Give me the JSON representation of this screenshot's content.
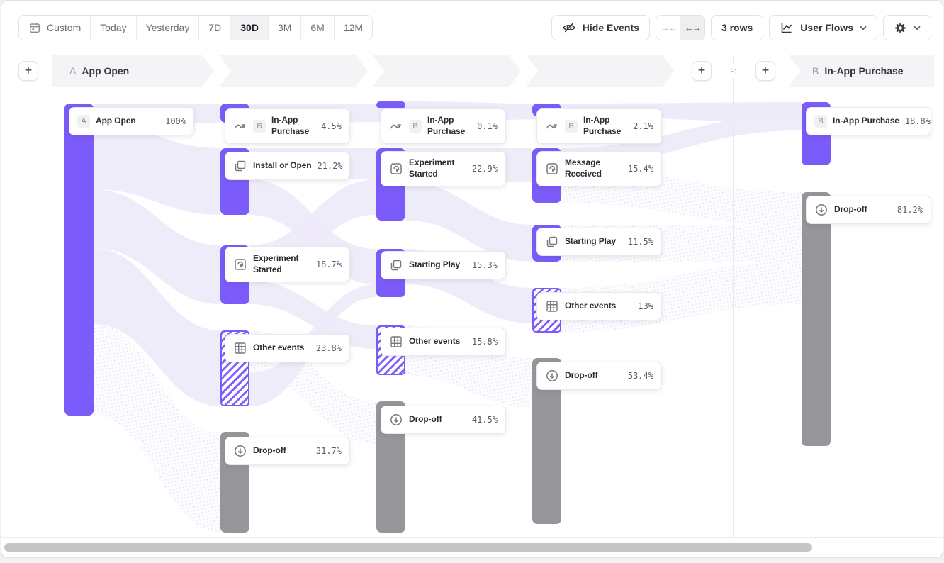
{
  "toolbar": {
    "date_ranges": [
      {
        "label": "Custom",
        "active": false,
        "icon": "calendar-icon"
      },
      {
        "label": "Today",
        "active": false
      },
      {
        "label": "Yesterday",
        "active": false
      },
      {
        "label": "7D",
        "active": false
      },
      {
        "label": "30D",
        "active": true
      },
      {
        "label": "3M",
        "active": false
      },
      {
        "label": "6M",
        "active": false
      },
      {
        "label": "12M",
        "active": false
      }
    ],
    "hide_events_label": "Hide Events",
    "rows_label": "3 rows",
    "view_label": "User Flows",
    "plus_symbol": "+",
    "approx_symbol": "≈"
  },
  "header": {
    "start": {
      "prefix": "A",
      "label": "App Open"
    },
    "end": {
      "prefix": "B",
      "label": "In-App Purchase"
    }
  },
  "chart_data": {
    "type": "sankey-user-flow",
    "start_event": "App Open",
    "end_event": "In-App Purchase",
    "rows": 3,
    "columns": [
      {
        "step": "start",
        "nodes": [
          {
            "label": "App Open",
            "pct": "100%",
            "badge": "A",
            "kind": "event"
          }
        ]
      },
      {
        "step": "step-1",
        "nodes": [
          {
            "label": "In-App Purchase",
            "pct": "4.5%",
            "badge": "B",
            "icon": "flow-arrow-icon",
            "kind": "event",
            "two_line": true
          },
          {
            "label": "Install or Open",
            "pct": "21.2%",
            "icon": "squares-icon",
            "kind": "event"
          },
          {
            "label": "Experiment Started",
            "pct": "18.7%",
            "icon": "cursor-box-icon",
            "kind": "event",
            "two_line": true
          },
          {
            "label": "Other events",
            "pct": "23.8%",
            "icon": "grid-icon",
            "kind": "other"
          },
          {
            "label": "Drop-off",
            "pct": "31.7%",
            "icon": "arrow-down-circle-icon",
            "kind": "dropoff"
          }
        ]
      },
      {
        "step": "step-2",
        "nodes": [
          {
            "label": "In-App Purchase",
            "pct": "0.1%",
            "badge": "B",
            "icon": "flow-arrow-icon",
            "kind": "event",
            "two_line": true
          },
          {
            "label": "Experiment Started",
            "pct": "22.9%",
            "icon": "cursor-box-icon",
            "kind": "event",
            "two_line": true
          },
          {
            "label": "Starting Play",
            "pct": "15.3%",
            "icon": "squares-icon",
            "kind": "event"
          },
          {
            "label": "Other events",
            "pct": "15.8%",
            "icon": "grid-icon",
            "kind": "other"
          },
          {
            "label": "Drop-off",
            "pct": "41.5%",
            "icon": "arrow-down-circle-icon",
            "kind": "dropoff"
          }
        ]
      },
      {
        "step": "step-3",
        "nodes": [
          {
            "label": "In-App Purchase",
            "pct": "2.1%",
            "badge": "B",
            "icon": "flow-arrow-icon",
            "kind": "event",
            "two_line": true
          },
          {
            "label": "Message Received",
            "pct": "15.4%",
            "icon": "cursor-box-icon",
            "kind": "event",
            "two_line": true
          },
          {
            "label": "Starting Play",
            "pct": "11.5%",
            "icon": "squares-icon",
            "kind": "event"
          },
          {
            "label": "Other events",
            "pct": "13%",
            "icon": "grid-icon",
            "kind": "other"
          },
          {
            "label": "Drop-off",
            "pct": "53.4%",
            "icon": "arrow-down-circle-icon",
            "kind": "dropoff"
          }
        ]
      },
      {
        "step": "end",
        "nodes": [
          {
            "label": "In-App Purchase",
            "pct": "18.8%",
            "badge": "B",
            "kind": "event"
          },
          {
            "label": "Drop-off",
            "pct": "81.2%",
            "icon": "arrow-down-circle-icon",
            "kind": "dropoff"
          }
        ]
      }
    ]
  },
  "colors": {
    "event_bar": "#7b5cfa",
    "dropoff_bar": "#96969a",
    "link": "#edeafa",
    "band_bg": "#f4f4f6"
  }
}
